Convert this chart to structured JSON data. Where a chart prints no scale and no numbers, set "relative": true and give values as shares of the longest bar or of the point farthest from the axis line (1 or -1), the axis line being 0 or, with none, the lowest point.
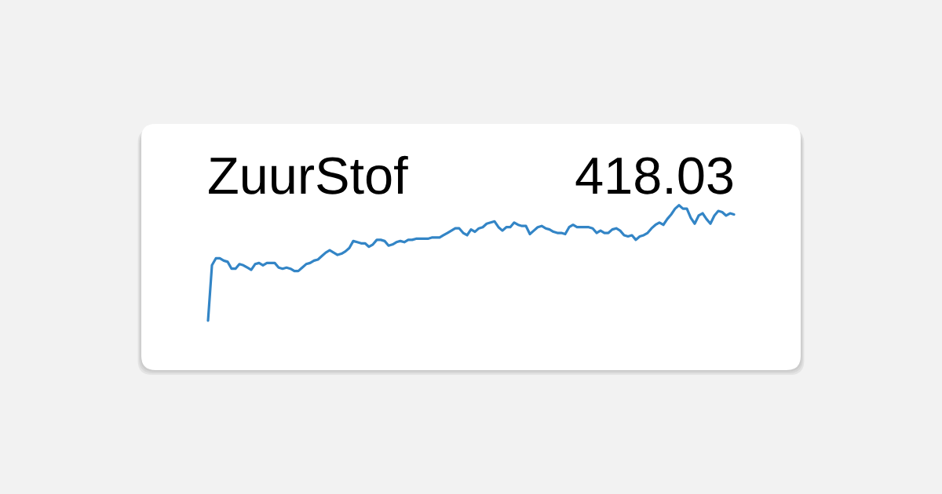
{
  "chart_data": {
    "type": "line",
    "title": "ZuurStof",
    "annotations": [
      "418.03"
    ],
    "relative": true,
    "tick_labels": false,
    "color": "#3385c6",
    "categories": [
      null,
      null,
      null,
      null,
      null,
      null,
      null,
      null,
      null,
      null,
      null,
      null,
      null,
      null,
      null,
      null,
      null,
      null,
      null,
      null,
      null,
      null,
      null,
      null,
      null,
      null,
      null,
      null,
      null,
      null,
      null,
      null,
      null,
      null,
      null,
      null,
      null,
      null,
      null,
      null,
      null,
      null,
      null,
      null,
      null,
      null,
      null,
      null,
      null,
      null,
      null,
      null,
      null,
      null,
      null,
      null,
      null,
      null,
      null,
      null,
      null,
      null,
      null,
      null,
      null,
      null,
      null,
      null,
      null,
      null,
      null,
      null,
      null,
      null,
      null,
      null,
      null,
      null,
      null,
      null,
      null,
      null,
      null,
      null,
      null,
      null,
      null,
      null,
      null,
      null,
      null,
      null,
      null,
      null,
      null,
      null,
      null,
      null,
      null,
      null,
      null,
      null,
      null,
      null,
      null,
      null,
      null,
      null,
      null,
      null,
      null,
      null,
      null,
      null,
      null,
      null,
      null,
      null,
      null,
      null,
      null,
      null,
      null,
      null,
      null,
      null,
      null,
      null,
      null,
      null,
      null,
      null,
      null,
      null,
      null
    ],
    "values": [
      0,
      0.48,
      0.54,
      0.54,
      0.52,
      0.51,
      0.45,
      0.45,
      0.49,
      0.48,
      0.46,
      0.44,
      0.49,
      0.5,
      0.48,
      0.5,
      0.5,
      0.5,
      0.46,
      0.45,
      0.46,
      0.45,
      0.43,
      0.43,
      0.46,
      0.49,
      0.5,
      0.52,
      0.53,
      0.56,
      0.59,
      0.61,
      0.59,
      0.57,
      0.58,
      0.6,
      0.63,
      0.69,
      0.68,
      0.67,
      0.67,
      0.64,
      0.66,
      0.7,
      0.7,
      0.69,
      0.65,
      0.66,
      0.68,
      0.69,
      0.68,
      0.7,
      0.7,
      0.71,
      0.71,
      0.71,
      0.71,
      0.72,
      0.72,
      0.72,
      0.74,
      0.76,
      0.78,
      0.8,
      0.8,
      0.76,
      0.74,
      0.79,
      0.77,
      0.8,
      0.81,
      0.84,
      0.85,
      0.86,
      0.81,
      0.78,
      0.81,
      0.81,
      0.85,
      0.83,
      0.82,
      0.82,
      0.75,
      0.78,
      0.81,
      0.82,
      0.8,
      0.79,
      0.77,
      0.76,
      0.76,
      0.75,
      0.81,
      0.83,
      0.81,
      0.81,
      0.81,
      0.81,
      0.8,
      0.76,
      0.78,
      0.76,
      0.76,
      0.79,
      0.8,
      0.78,
      0.74,
      0.73,
      0.74,
      0.7,
      0.73,
      0.74,
      0.76,
      0.8,
      0.83,
      0.85,
      0.83,
      0.88,
      0.92,
      0.97,
      1,
      0.97,
      0.97,
      0.89,
      0.84,
      0.91,
      0.93,
      0.88,
      0.84,
      0.91,
      0.95,
      0.94,
      0.91,
      0.93,
      0.92
    ]
  }
}
